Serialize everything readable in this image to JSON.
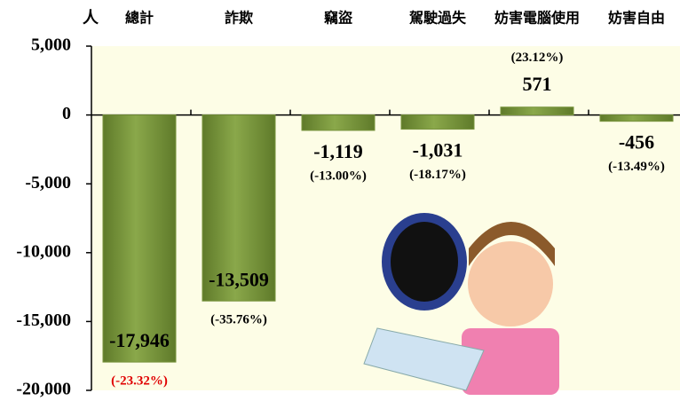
{
  "chart_data": {
    "type": "bar",
    "y_axis_label": "人",
    "categories": [
      "總計",
      "詐欺",
      "竊盜",
      "駕駛過失",
      "妨害電腦使用",
      "妨害自由"
    ],
    "values": [
      -17946,
      -13509,
      -1119,
      -1031,
      571,
      -456
    ],
    "value_labels": [
      "-17,946",
      "-13,509",
      "-1,119",
      "-1,031",
      "571",
      "-456"
    ],
    "percent_labels": [
      "(-23.32%)",
      "(-35.76%)",
      "(-13.00%)",
      "(-18.17%)",
      "(23.12%)",
      "(-13.49%)"
    ],
    "percent_label_colors": [
      "#e00000",
      "#000000",
      "#000000",
      "#000000",
      "#000000",
      "#000000"
    ],
    "color": "#77933c",
    "ylim": [
      -20000,
      5000
    ],
    "yticks": [
      {
        "value": 5000,
        "label": "5,000"
      },
      0,
      {
        "value": -5000,
        "label": "-5,000"
      },
      {
        "value": -10000,
        "label": "-10,000"
      },
      {
        "value": -15000,
        "label": "-15,000"
      },
      {
        "value": -20000,
        "label": "-20,000"
      }
    ]
  }
}
